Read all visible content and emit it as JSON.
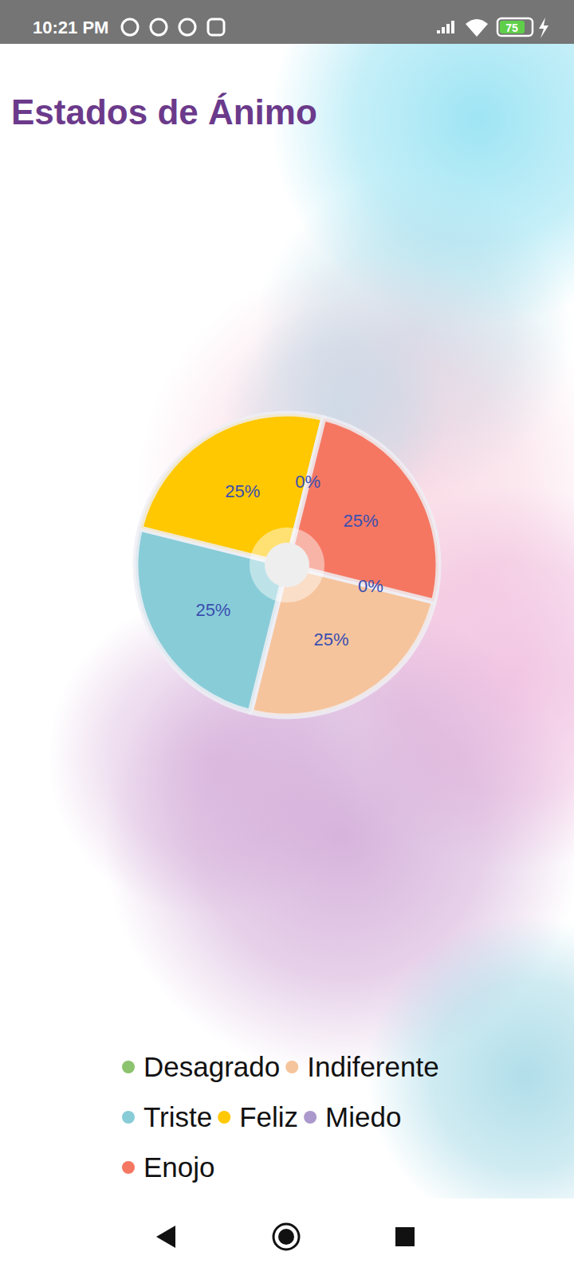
{
  "status_bar": {
    "time": "10:21 PM",
    "battery": "75"
  },
  "chart_data": {
    "type": "pie",
    "title": "Estados de Ánimo",
    "categories": [
      "Desagrado",
      "Indiferente",
      "Triste",
      "Feliz",
      "Miedo",
      "Enojo"
    ],
    "values": [
      0,
      25,
      25,
      25,
      0,
      25
    ],
    "value_labels": [
      "0%",
      "25%",
      "25%",
      "25%",
      "0%",
      "25%"
    ],
    "colors": [
      "#8cc36e",
      "#f6c49c",
      "#88ccd8",
      "#ffc800",
      "#ab98cc",
      "#f57762"
    ],
    "data_labels": true,
    "legend": "bottom"
  }
}
